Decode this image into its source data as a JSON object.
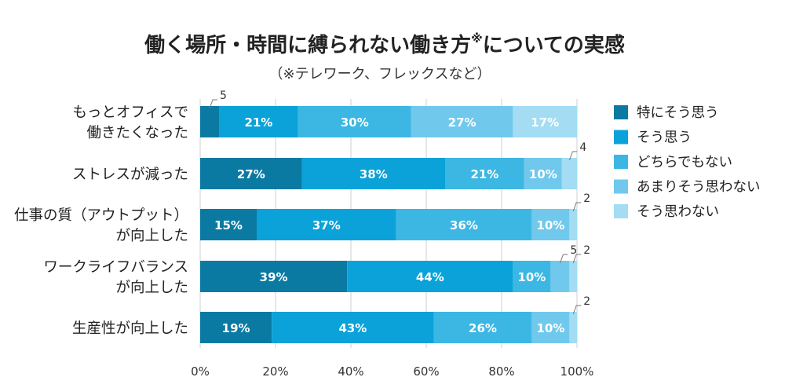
{
  "chart_data": {
    "type": "bar",
    "orientation": "horizontal",
    "stacked": true,
    "title": "働く場所・時間に縛られない働き方",
    "title_mark": "※",
    "title_suffix": "についての実感",
    "subtitle": "（※テレワーク、フレックスなど）",
    "categories": [
      [
        "もっとオフィスで",
        "働きたくなった"
      ],
      [
        "ストレスが減った"
      ],
      [
        "仕事の質（アウトプット）",
        "が向上した"
      ],
      [
        "ワークライフバランス",
        "が向上した"
      ],
      [
        "生産性が向上した"
      ]
    ],
    "series": [
      {
        "name": "特にそう思う",
        "color": "#0b7aa3",
        "values": [
          5,
          27,
          15,
          39,
          19
        ]
      },
      {
        "name": "そう思う",
        "color": "#0aa2d8",
        "values": [
          21,
          38,
          37,
          44,
          43
        ]
      },
      {
        "name": "どちらでもない",
        "color": "#3cb7e3",
        "values": [
          30,
          21,
          36,
          10,
          26
        ]
      },
      {
        "name": "あまりそう思わない",
        "color": "#70c9ec",
        "values": [
          27,
          10,
          10,
          5,
          10
        ]
      },
      {
        "name": "そう思わない",
        "color": "#a3dcf3",
        "values": [
          17,
          4,
          2,
          2,
          2
        ]
      }
    ],
    "xlim": [
      0,
      100
    ],
    "x_ticks": [
      "0%",
      "20%",
      "40%",
      "60%",
      "80%",
      "100%"
    ],
    "grid": true,
    "legend": "right"
  }
}
